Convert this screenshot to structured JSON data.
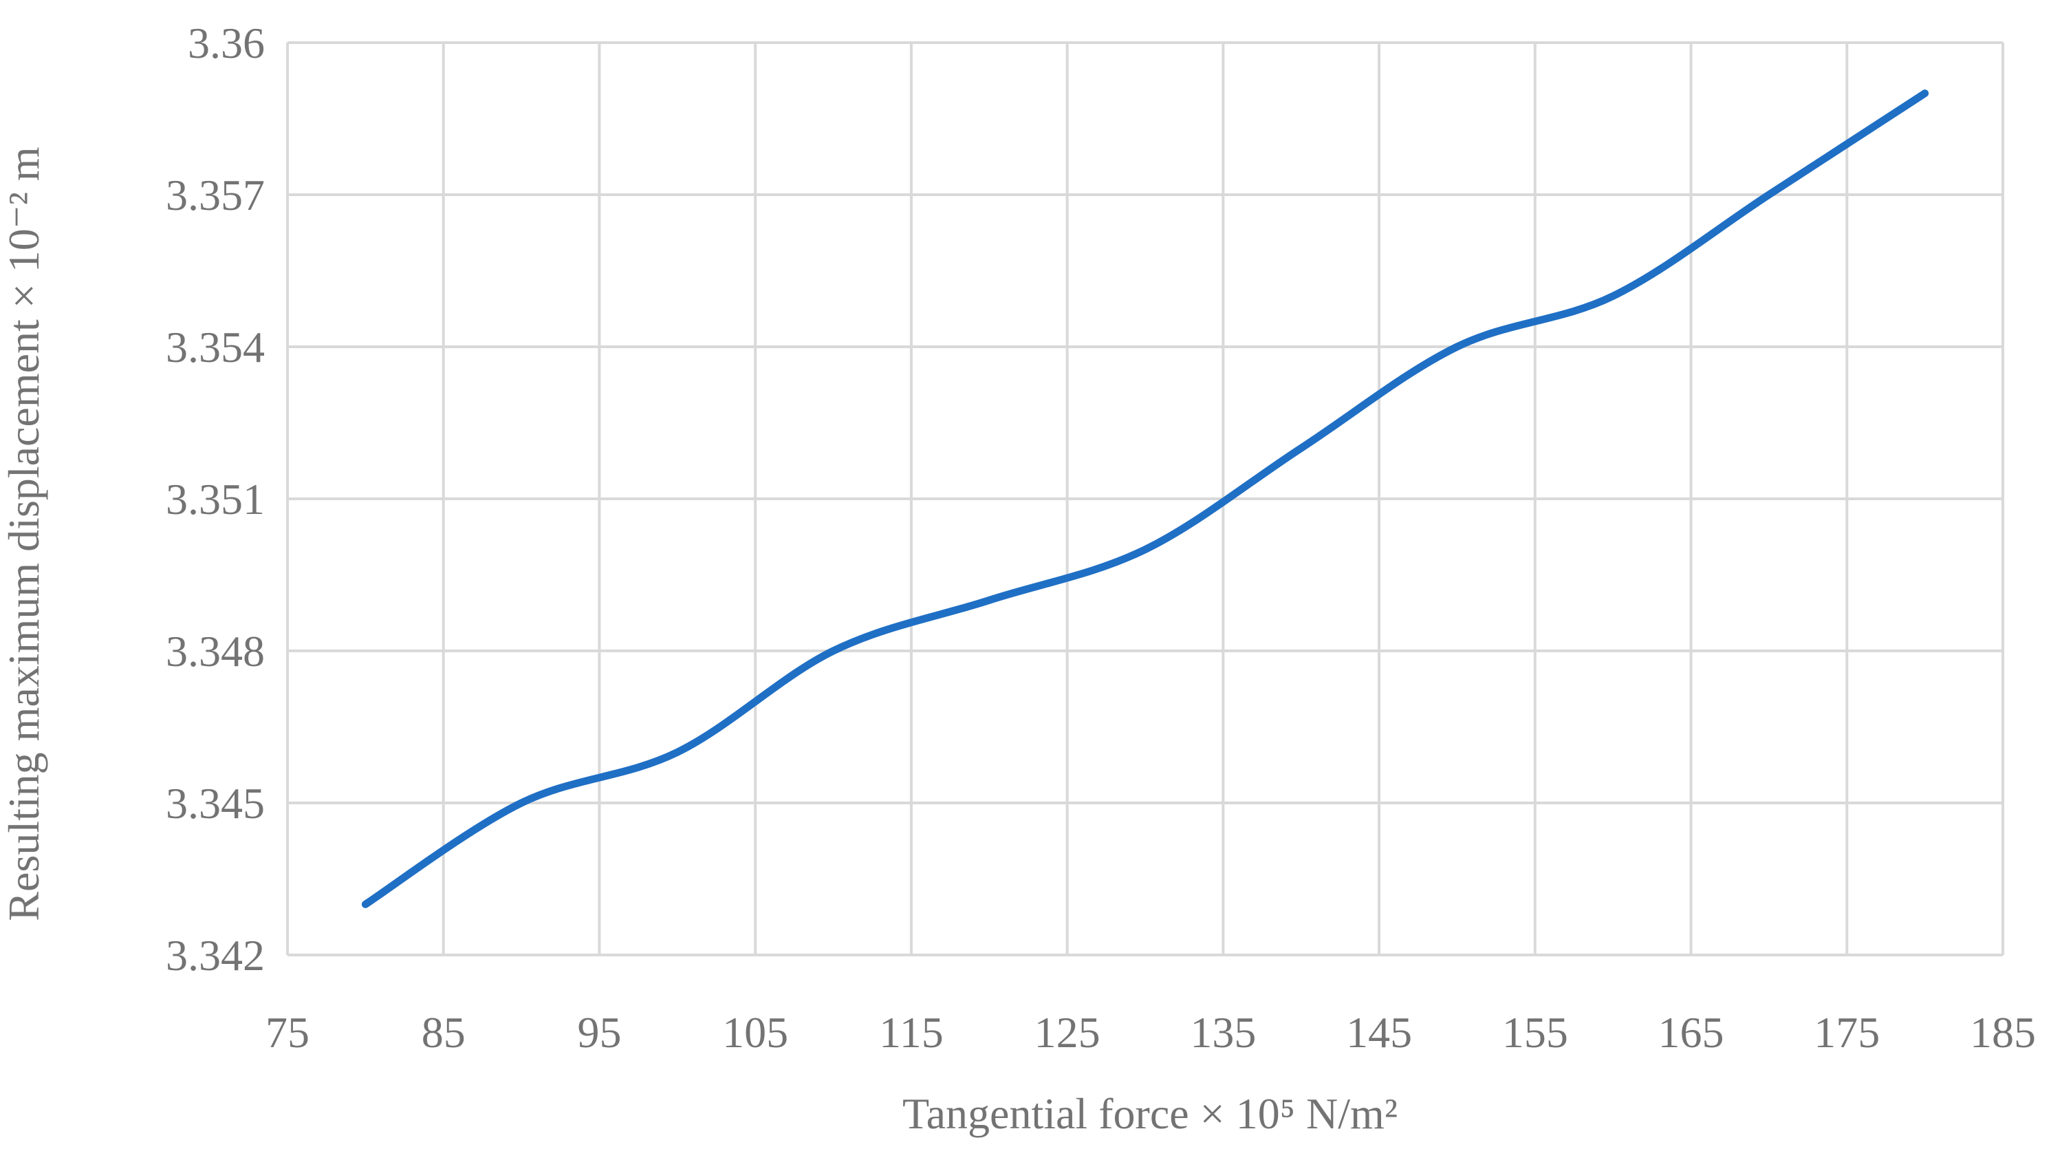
{
  "chart_data": {
    "type": "line",
    "xlabel": "Tangential force × 10⁵ N/m²",
    "ylabel": "Resulting maximum displacement  × 10⁻² m",
    "xlim": [
      75,
      185
    ],
    "ylim": [
      3.342,
      3.36
    ],
    "x_ticks": [
      "75",
      "85",
      "95",
      "105",
      "115",
      "125",
      "135",
      "145",
      "155",
      "165",
      "175",
      "185"
    ],
    "y_ticks": [
      "3.342",
      "3.345",
      "3.348",
      "3.351",
      "3.354",
      "3.357",
      "3.36"
    ],
    "grid": true,
    "series_color": "#1f6fc5",
    "series": [
      {
        "x": [
          80,
          90,
          100,
          110,
          120,
          130,
          140,
          150,
          160,
          170,
          180
        ],
        "values": [
          3.343,
          3.345,
          3.346,
          3.348,
          3.349,
          3.35,
          3.352,
          3.354,
          3.355,
          3.357,
          3.359
        ]
      }
    ]
  }
}
